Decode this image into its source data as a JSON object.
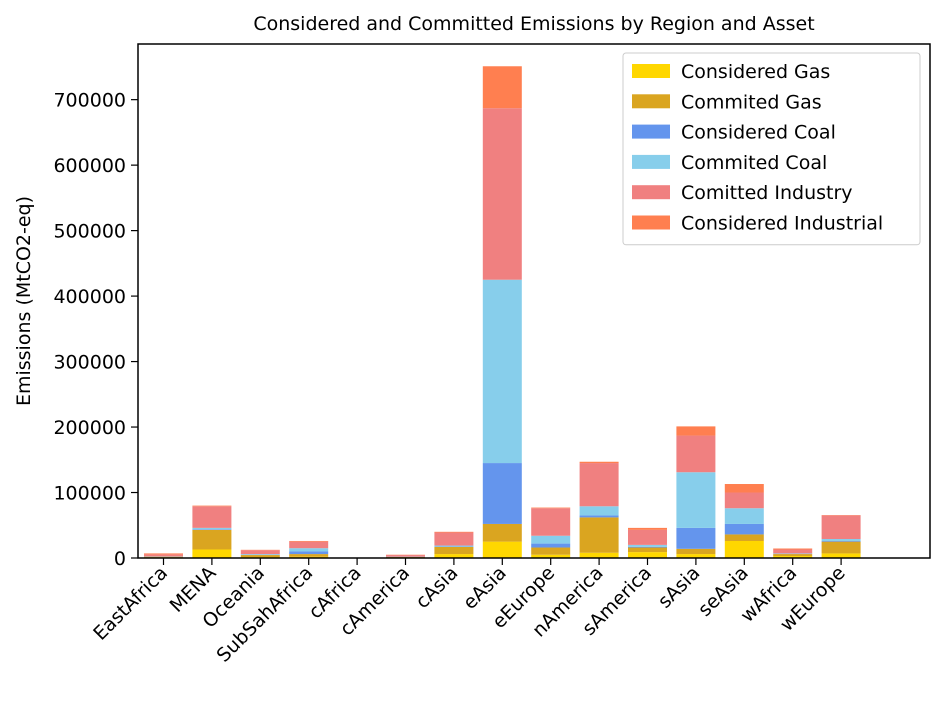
{
  "chart_data": {
    "type": "bar",
    "stacked": true,
    "title": "Considered and Committed Emissions by Region and Asset",
    "xlabel": "",
    "ylabel": "Emissions (MtCO2-eq)",
    "ylim": [
      0,
      785000
    ],
    "yticks": [
      0,
      100000,
      200000,
      300000,
      400000,
      500000,
      600000,
      700000
    ],
    "ytick_labels": [
      "0",
      "100000",
      "200000",
      "300000",
      "400000",
      "500000",
      "600000",
      "700000"
    ],
    "legend_position": "top-right",
    "grid": false,
    "categories": [
      "EastAfrica",
      "MENA",
      "Oceania",
      "SubSahAfrica",
      "cAfrica",
      "cAmerica",
      "cAsia",
      "eAsia",
      "eEurope",
      "nAmerica",
      "sAmerica",
      "sAsia",
      "seAsia",
      "wAfrica",
      "wEurope"
    ],
    "series": [
      {
        "name": "Considered Gas",
        "color": "#FFD700",
        "values": [
          1000,
          13000,
          1500,
          2000,
          0,
          500,
          6000,
          25000,
          5000,
          8000,
          9000,
          6000,
          26000,
          3000,
          7000
        ]
      },
      {
        "name": "Commited Gas",
        "color": "#DAA520",
        "values": [
          1000,
          30000,
          3000,
          4000,
          200,
          1000,
          11000,
          27000,
          11000,
          54000,
          7000,
          8000,
          10000,
          3000,
          18000
        ]
      },
      {
        "name": "Considered Coal",
        "color": "#6495ED",
        "values": [
          200,
          1000,
          500,
          4000,
          0,
          300,
          500,
          93000,
          6000,
          3000,
          1000,
          32000,
          16000,
          500,
          1000
        ]
      },
      {
        "name": "Commited Coal",
        "color": "#87CEEB",
        "values": [
          300,
          2000,
          1000,
          5000,
          0,
          200,
          1500,
          280000,
          12000,
          14000,
          3000,
          85000,
          24000,
          500,
          3000
        ]
      },
      {
        "name": "Comitted Industry",
        "color": "#F08080",
        "values": [
          3000,
          33000,
          6000,
          10000,
          500,
          2500,
          20000,
          262000,
          42000,
          66000,
          23000,
          56000,
          24000,
          6000,
          36000
        ]
      },
      {
        "name": "Considered Industrial",
        "color": "#FF7F50",
        "values": [
          1500,
          1000,
          500,
          1000,
          0,
          500,
          1000,
          64000,
          1000,
          2000,
          3000,
          14000,
          13000,
          1500,
          500
        ]
      }
    ]
  }
}
